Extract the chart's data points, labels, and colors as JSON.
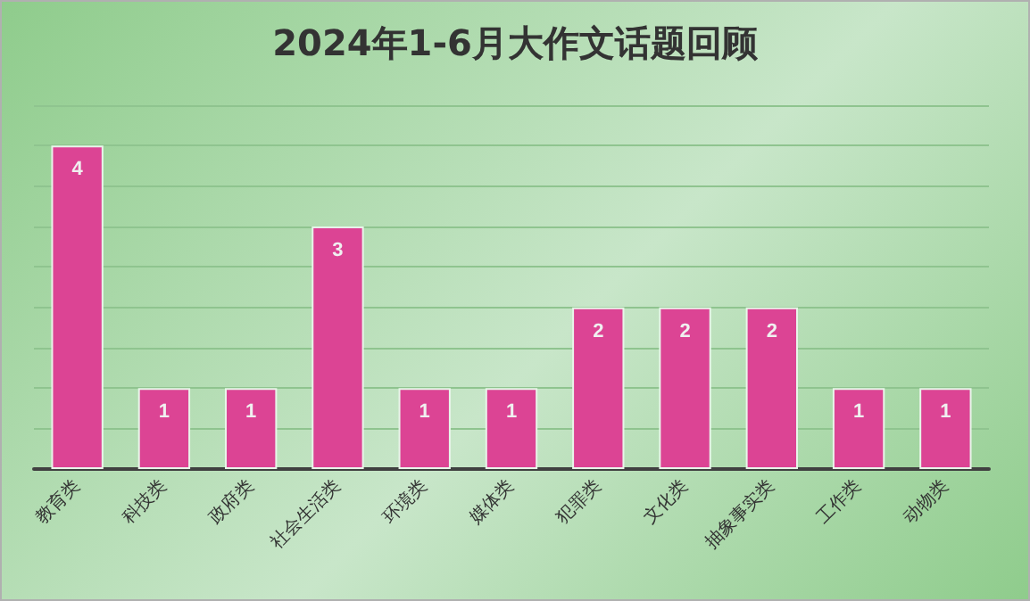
{
  "chart_data": {
    "type": "bar",
    "title": "2024年1-6月大作文话题回顾",
    "categories": [
      "教育类",
      "科技类",
      "政府类",
      "社会生活类",
      "环境类",
      "媒体类",
      "犯罪类",
      "文化类",
      "抽象事实类",
      "工作类",
      "动物类"
    ],
    "values": [
      4,
      1,
      1,
      3,
      1,
      1,
      2,
      2,
      2,
      1,
      1
    ],
    "color": "#dc4494",
    "ylim": [
      0,
      4.5
    ],
    "yticks": [
      {
        "value": 0,
        "label": null
      },
      {
        "value": 0.5,
        "label": null
      },
      {
        "value": 1,
        "label": null
      },
      {
        "value": 1.5,
        "label": null
      },
      {
        "value": 2,
        "label": null
      },
      {
        "value": 2.5,
        "label": null
      },
      {
        "value": 3,
        "label": null
      },
      {
        "value": 3.5,
        "label": null
      },
      {
        "value": 4,
        "label": null
      },
      {
        "value": 4.5,
        "label": null
      }
    ],
    "tick_labels": "x",
    "grid": true,
    "data_labels": true
  }
}
